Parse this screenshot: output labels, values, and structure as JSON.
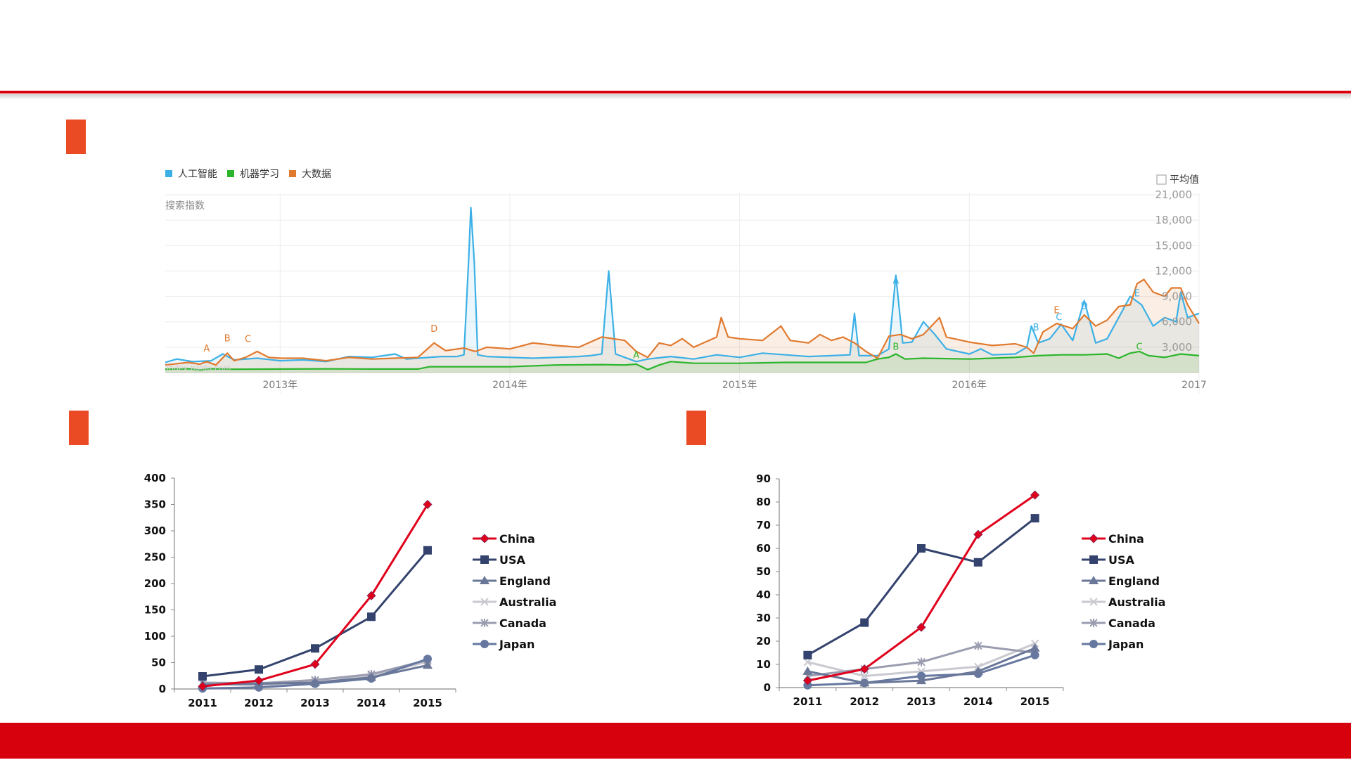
{
  "colors": {
    "accent_red": "#d9000e",
    "marker_orange": "#ea4b24"
  },
  "chart_data": [
    {
      "type": "line",
      "legend": [
        "人工智能",
        "机器学习",
        "大数据"
      ],
      "series_colors": [
        "#3cb0e6",
        "#2bb52b",
        "#e07a2f"
      ],
      "average_checkbox_label": "平均值",
      "ylabel": "搜索指数",
      "watermark": "index.baidu.com",
      "y_ticks": [
        "21,000",
        "18,000",
        "15,000",
        "12,000",
        "9,000",
        "6,000",
        "3,000"
      ],
      "ylim": [
        0,
        21000
      ],
      "x_ticks": [
        "2013年",
        "2014年",
        "2015年",
        "2016年",
        "2017年"
      ],
      "xlim": [
        2012.5,
        2017.0
      ],
      "annotations": [
        {
          "label": "A",
          "series": "大数据",
          "x": 2012.68,
          "y": 2000
        },
        {
          "label": "B",
          "series": "大数据",
          "x": 2012.77,
          "y": 3200
        },
        {
          "label": "C",
          "series": "大数据",
          "x": 2012.86,
          "y": 3100
        },
        {
          "label": "D",
          "series": "大数据",
          "x": 2013.67,
          "y": 4300
        },
        {
          "label": "A",
          "series": "机器学习",
          "x": 2014.55,
          "y": 1200
        },
        {
          "label": "A",
          "series": "人工智能",
          "x": 2015.68,
          "y": 10000
        },
        {
          "label": "B",
          "series": "机器学习",
          "x": 2015.68,
          "y": 2200
        },
        {
          "label": "B",
          "series": "人工智能",
          "x": 2016.29,
          "y": 4500
        },
        {
          "label": "E",
          "series": "大数据",
          "x": 2016.38,
          "y": 6500
        },
        {
          "label": "C",
          "series": "人工智能",
          "x": 2016.39,
          "y": 5700
        },
        {
          "label": "D",
          "series": "人工智能",
          "x": 2016.5,
          "y": 7000
        },
        {
          "label": "E",
          "series": "人工智能",
          "x": 2016.73,
          "y": 8500
        },
        {
          "label": "C",
          "series": "机器学习",
          "x": 2016.74,
          "y": 2200
        }
      ],
      "series": [
        {
          "name": "人工智能",
          "points": [
            [
              2012.5,
              1200
            ],
            [
              2012.55,
              1600
            ],
            [
              2012.62,
              1300
            ],
            [
              2012.7,
              1400
            ],
            [
              2012.75,
              2200
            ],
            [
              2012.8,
              1500
            ],
            [
              2012.9,
              1700
            ],
            [
              2013.0,
              1400
            ],
            [
              2013.1,
              1500
            ],
            [
              2013.2,
              1300
            ],
            [
              2013.3,
              1900
            ],
            [
              2013.4,
              1800
            ],
            [
              2013.5,
              2200
            ],
            [
              2013.55,
              1600
            ],
            [
              2013.7,
              1900
            ],
            [
              2013.77,
              1900
            ],
            [
              2013.8,
              2100
            ],
            [
              2013.82,
              13000
            ],
            [
              2013.83,
              19500
            ],
            [
              2013.845,
              13000
            ],
            [
              2013.86,
              2100
            ],
            [
              2013.9,
              1900
            ],
            [
              2014.0,
              1800
            ],
            [
              2014.1,
              1700
            ],
            [
              2014.2,
              1800
            ],
            [
              2014.3,
              1900
            ],
            [
              2014.35,
              2000
            ],
            [
              2014.4,
              2200
            ],
            [
              2014.43,
              12000
            ],
            [
              2014.46,
              2200
            ],
            [
              2014.55,
              1300
            ],
            [
              2014.6,
              1600
            ],
            [
              2014.7,
              1900
            ],
            [
              2014.8,
              1600
            ],
            [
              2014.9,
              2100
            ],
            [
              2015.0,
              1800
            ],
            [
              2015.1,
              2300
            ],
            [
              2015.2,
              2100
            ],
            [
              2015.3,
              1900
            ],
            [
              2015.4,
              2000
            ],
            [
              2015.48,
              2100
            ],
            [
              2015.5,
              7000
            ],
            [
              2015.52,
              2000
            ],
            [
              2015.6,
              2000
            ],
            [
              2015.65,
              2800
            ],
            [
              2015.68,
              11500
            ],
            [
              2015.71,
              3500
            ],
            [
              2015.75,
              3600
            ],
            [
              2015.8,
              6000
            ],
            [
              2015.85,
              4500
            ],
            [
              2015.9,
              2800
            ],
            [
              2016.0,
              2200
            ],
            [
              2016.05,
              2800
            ],
            [
              2016.1,
              2100
            ],
            [
              2016.2,
              2200
            ],
            [
              2016.25,
              3000
            ],
            [
              2016.27,
              5500
            ],
            [
              2016.3,
              3500
            ],
            [
              2016.35,
              4000
            ],
            [
              2016.4,
              5700
            ],
            [
              2016.45,
              3800
            ],
            [
              2016.5,
              8500
            ],
            [
              2016.55,
              3500
            ],
            [
              2016.6,
              4000
            ],
            [
              2016.65,
              6500
            ],
            [
              2016.7,
              9000
            ],
            [
              2016.75,
              8000
            ],
            [
              2016.8,
              5500
            ],
            [
              2016.85,
              6500
            ],
            [
              2016.9,
              6000
            ],
            [
              2016.92,
              9500
            ],
            [
              2016.95,
              6500
            ],
            [
              2017.0,
              7000
            ]
          ]
        },
        {
          "name": "机器学习",
          "points": [
            [
              2012.5,
              400
            ],
            [
              2012.6,
              450
            ],
            [
              2012.65,
              300
            ],
            [
              2012.7,
              450
            ],
            [
              2012.8,
              400
            ],
            [
              2013.0,
              420
            ],
            [
              2013.2,
              450
            ],
            [
              2013.4,
              420
            ],
            [
              2013.6,
              420
            ],
            [
              2013.65,
              700
            ],
            [
              2013.8,
              700
            ],
            [
              2014.0,
              700
            ],
            [
              2014.2,
              900
            ],
            [
              2014.4,
              950
            ],
            [
              2014.5,
              900
            ],
            [
              2014.55,
              1000
            ],
            [
              2014.6,
              350
            ],
            [
              2014.65,
              900
            ],
            [
              2014.7,
              1300
            ],
            [
              2014.8,
              1100
            ],
            [
              2015.0,
              1100
            ],
            [
              2015.2,
              1200
            ],
            [
              2015.4,
              1200
            ],
            [
              2015.55,
              1200
            ],
            [
              2015.6,
              1600
            ],
            [
              2015.65,
              1800
            ],
            [
              2015.68,
              2200
            ],
            [
              2015.72,
              1600
            ],
            [
              2015.8,
              1700
            ],
            [
              2016.0,
              1600
            ],
            [
              2016.1,
              1700
            ],
            [
              2016.2,
              1800
            ],
            [
              2016.3,
              2000
            ],
            [
              2016.4,
              2100
            ],
            [
              2016.5,
              2100
            ],
            [
              2016.6,
              2200
            ],
            [
              2016.65,
              1700
            ],
            [
              2016.7,
              2300
            ],
            [
              2016.74,
              2500
            ],
            [
              2016.78,
              2000
            ],
            [
              2016.85,
              1800
            ],
            [
              2016.92,
              2200
            ],
            [
              2017.0,
              2000
            ]
          ]
        },
        {
          "name": "大数据",
          "points": [
            [
              2012.5,
              900
            ],
            [
              2012.6,
              1200
            ],
            [
              2012.65,
              1000
            ],
            [
              2012.68,
              1300
            ],
            [
              2012.72,
              900
            ],
            [
              2012.77,
              2300
            ],
            [
              2012.8,
              1400
            ],
            [
              2012.85,
              1800
            ],
            [
              2012.9,
              2500
            ],
            [
              2012.95,
              1800
            ],
            [
              2013.0,
              1700
            ],
            [
              2013.1,
              1700
            ],
            [
              2013.2,
              1400
            ],
            [
              2013.3,
              1800
            ],
            [
              2013.4,
              1600
            ],
            [
              2013.5,
              1700
            ],
            [
              2013.6,
              1800
            ],
            [
              2013.67,
              3500
            ],
            [
              2013.72,
              2600
            ],
            [
              2013.8,
              2900
            ],
            [
              2013.85,
              2500
            ],
            [
              2013.9,
              3000
            ],
            [
              2014.0,
              2800
            ],
            [
              2014.1,
              3500
            ],
            [
              2014.2,
              3200
            ],
            [
              2014.3,
              3000
            ],
            [
              2014.4,
              4200
            ],
            [
              2014.5,
              3800
            ],
            [
              2014.55,
              2500
            ],
            [
              2014.6,
              1800
            ],
            [
              2014.65,
              3500
            ],
            [
              2014.7,
              3200
            ],
            [
              2014.75,
              4000
            ],
            [
              2014.8,
              3000
            ],
            [
              2014.85,
              3600
            ],
            [
              2014.9,
              4200
            ],
            [
              2014.92,
              6500
            ],
            [
              2014.95,
              4200
            ],
            [
              2015.0,
              4000
            ],
            [
              2015.1,
              3800
            ],
            [
              2015.18,
              5500
            ],
            [
              2015.22,
              3800
            ],
            [
              2015.3,
              3500
            ],
            [
              2015.35,
              4500
            ],
            [
              2015.4,
              3800
            ],
            [
              2015.45,
              4200
            ],
            [
              2015.5,
              3500
            ],
            [
              2015.55,
              2500
            ],
            [
              2015.6,
              1700
            ],
            [
              2015.65,
              4300
            ],
            [
              2015.7,
              4500
            ],
            [
              2015.75,
              4000
            ],
            [
              2015.8,
              4500
            ],
            [
              2015.87,
              6500
            ],
            [
              2015.9,
              4200
            ],
            [
              2016.0,
              3600
            ],
            [
              2016.1,
              3200
            ],
            [
              2016.2,
              3400
            ],
            [
              2016.25,
              3000
            ],
            [
              2016.28,
              2300
            ],
            [
              2016.32,
              4800
            ],
            [
              2016.38,
              5800
            ],
            [
              2016.45,
              5200
            ],
            [
              2016.5,
              6800
            ],
            [
              2016.55,
              5500
            ],
            [
              2016.6,
              6200
            ],
            [
              2016.65,
              7800
            ],
            [
              2016.7,
              8000
            ],
            [
              2016.73,
              10500
            ],
            [
              2016.76,
              11000
            ],
            [
              2016.8,
              9500
            ],
            [
              2016.85,
              9000
            ],
            [
              2016.88,
              10000
            ],
            [
              2016.92,
              10000
            ],
            [
              2016.95,
              8000
            ],
            [
              2017.0,
              5800
            ]
          ]
        }
      ]
    },
    {
      "type": "line",
      "categories": [
        "2011",
        "2012",
        "2013",
        "2014",
        "2015"
      ],
      "ylim": [
        0,
        400
      ],
      "y_ticks": [
        0,
        50,
        100,
        150,
        200,
        250,
        300,
        350,
        400
      ],
      "series": [
        {
          "name": "China",
          "color": "#e0001b",
          "marker": "diamond",
          "values": [
            5,
            16,
            47,
            177,
            350
          ]
        },
        {
          "name": "USA",
          "color": "#33436d",
          "marker": "square",
          "values": [
            24,
            37,
            77,
            137,
            263
          ]
        },
        {
          "name": "England",
          "color": "#6a7798",
          "marker": "triangle",
          "values": [
            8,
            10,
            12,
            22,
            45
          ]
        },
        {
          "name": "Australia",
          "color": "#c9c9d0",
          "marker": "x",
          "values": [
            10,
            7,
            15,
            25,
            52
          ]
        },
        {
          "name": "Canada",
          "color": "#9a9cb0",
          "marker": "star",
          "values": [
            12,
            11,
            17,
            28,
            55
          ]
        },
        {
          "name": "Japan",
          "color": "#6678a0",
          "marker": "circle",
          "values": [
            1,
            3,
            10,
            20,
            57
          ]
        }
      ]
    },
    {
      "type": "line",
      "categories": [
        "2011",
        "2012",
        "2013",
        "2014",
        "2015"
      ],
      "ylim": [
        0,
        90
      ],
      "y_ticks": [
        0,
        10,
        20,
        30,
        40,
        50,
        60,
        70,
        80,
        90
      ],
      "series": [
        {
          "name": "China",
          "color": "#e0001b",
          "marker": "diamond",
          "values": [
            3,
            8,
            26,
            66,
            83
          ]
        },
        {
          "name": "USA",
          "color": "#33436d",
          "marker": "square",
          "values": [
            14,
            28,
            60,
            54,
            73
          ]
        },
        {
          "name": "England",
          "color": "#6a7798",
          "marker": "triangle",
          "values": [
            7,
            2,
            3,
            7,
            17
          ]
        },
        {
          "name": "Australia",
          "color": "#c9c9d0",
          "marker": "x",
          "values": [
            11,
            5,
            7,
            9,
            19
          ]
        },
        {
          "name": "Canada",
          "color": "#9a9cb0",
          "marker": "star",
          "values": [
            5,
            8,
            11,
            18,
            15
          ]
        },
        {
          "name": "Japan",
          "color": "#6678a0",
          "marker": "circle",
          "values": [
            1,
            2,
            5,
            6,
            14
          ]
        }
      ]
    }
  ]
}
